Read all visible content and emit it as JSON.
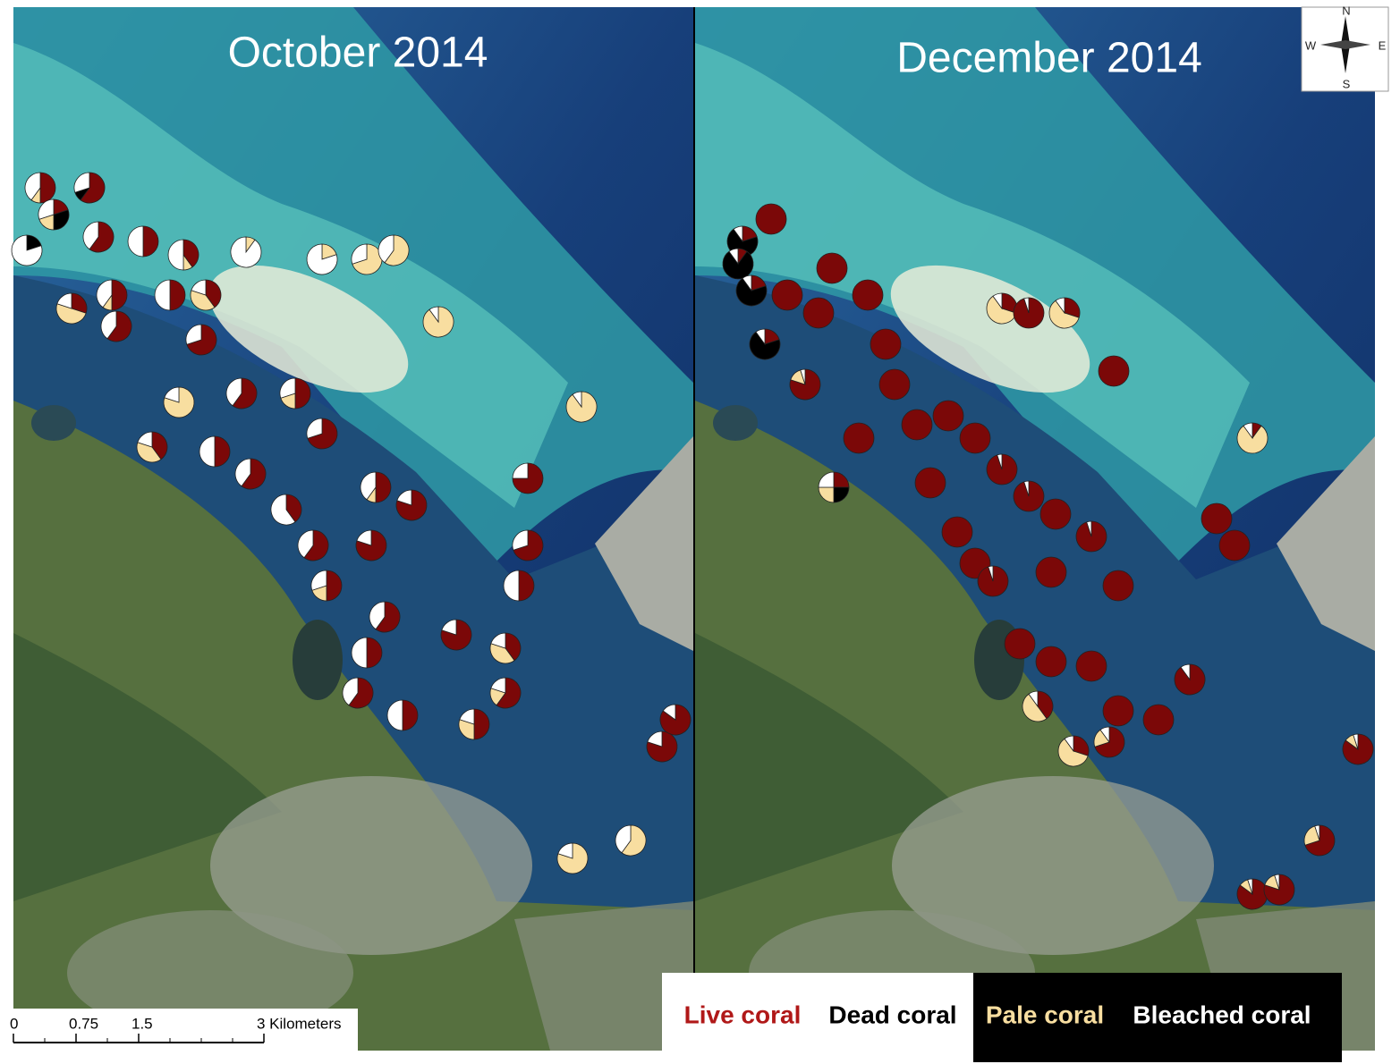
{
  "panels": [
    {
      "title": "October 2014",
      "sites": [
        [
          50,
          0,
          10,
          40
        ],
        [
          60,
          10,
          0,
          30
        ],
        [
          20,
          30,
          20,
          30
        ],
        [
          0,
          20,
          0,
          80
        ],
        [
          60,
          0,
          0,
          40
        ],
        [
          50,
          0,
          0,
          50
        ],
        [
          40,
          0,
          10,
          50
        ],
        [
          0,
          0,
          10,
          90
        ],
        [
          0,
          0,
          20,
          80
        ],
        [
          0,
          0,
          70,
          30
        ],
        [
          0,
          0,
          60,
          40
        ],
        [
          50,
          0,
          10,
          40
        ],
        [
          50,
          0,
          0,
          50
        ],
        [
          40,
          0,
          40,
          20
        ],
        [
          30,
          0,
          50,
          20
        ],
        [
          60,
          0,
          0,
          40
        ],
        [
          70,
          0,
          0,
          30
        ],
        [
          0,
          0,
          90,
          10
        ],
        [
          0,
          0,
          80,
          20
        ],
        [
          60,
          0,
          0,
          40
        ],
        [
          50,
          0,
          20,
          30
        ],
        [
          0,
          0,
          90,
          10
        ],
        [
          40,
          0,
          40,
          20
        ],
        [
          50,
          0,
          0,
          50
        ],
        [
          60,
          0,
          0,
          40
        ],
        [
          70,
          0,
          0,
          30
        ],
        [
          50,
          0,
          10,
          40
        ],
        [
          80,
          0,
          0,
          20
        ],
        [
          75,
          0,
          0,
          25
        ],
        [
          40,
          0,
          0,
          60
        ],
        [
          60,
          0,
          0,
          40
        ],
        [
          80,
          0,
          0,
          20
        ],
        [
          70,
          0,
          0,
          30
        ],
        [
          50,
          0,
          0,
          50
        ],
        [
          50,
          0,
          20,
          30
        ],
        [
          60,
          0,
          0,
          40
        ],
        [
          50,
          0,
          0,
          50
        ],
        [
          80,
          0,
          0,
          20
        ],
        [
          40,
          0,
          40,
          20
        ],
        [
          60,
          0,
          0,
          40
        ],
        [
          50,
          0,
          0,
          50
        ],
        [
          50,
          0,
          30,
          20
        ],
        [
          60,
          0,
          20,
          20
        ],
        [
          0,
          0,
          80,
          20
        ],
        [
          0,
          0,
          60,
          40
        ],
        [
          80,
          0,
          0,
          20
        ],
        [
          85,
          0,
          0,
          15
        ]
      ]
    },
    {
      "title": "December 2014",
      "sites": [
        [
          100,
          0,
          0,
          0
        ],
        [
          20,
          70,
          0,
          10
        ],
        [
          10,
          80,
          0,
          10
        ],
        [
          100,
          0,
          0,
          0
        ],
        [
          100,
          0,
          0,
          0
        ],
        [
          20,
          70,
          0,
          10
        ],
        [
          100,
          0,
          0,
          0
        ],
        [
          100,
          0,
          0,
          0
        ],
        [
          100,
          0,
          0,
          0
        ],
        [
          100,
          0,
          0,
          0
        ],
        [
          20,
          70,
          0,
          10
        ],
        [
          30,
          0,
          60,
          10
        ],
        [
          95,
          0,
          0,
          5
        ],
        [
          30,
          0,
          60,
          10
        ],
        [
          100,
          0,
          0,
          0
        ],
        [
          80,
          0,
          15,
          5
        ],
        [
          100,
          0,
          0,
          0
        ],
        [
          100,
          0,
          0,
          0
        ],
        [
          95,
          0,
          0,
          5
        ],
        [
          100,
          0,
          0,
          0
        ],
        [
          100,
          0,
          0,
          0
        ],
        [
          10,
          0,
          80,
          10
        ],
        [
          25,
          25,
          25,
          25
        ],
        [
          100,
          0,
          0,
          0
        ],
        [
          100,
          0,
          0,
          0
        ],
        [
          95,
          0,
          0,
          5
        ],
        [
          100,
          0,
          0,
          0
        ],
        [
          95,
          0,
          0,
          5
        ],
        [
          100,
          0,
          0,
          0
        ],
        [
          100,
          0,
          0,
          0
        ],
        [
          95,
          0,
          0,
          5
        ],
        [
          100,
          0,
          0,
          0
        ],
        [
          100,
          0,
          0,
          0
        ],
        [
          100,
          0,
          0,
          0
        ],
        [
          100,
          0,
          0,
          0
        ],
        [
          40,
          0,
          50,
          10
        ],
        [
          30,
          0,
          60,
          10
        ],
        [
          70,
          0,
          20,
          10
        ],
        [
          100,
          0,
          0,
          0
        ],
        [
          100,
          0,
          0,
          0
        ],
        [
          100,
          0,
          0,
          0
        ],
        [
          100,
          0,
          0,
          0
        ],
        [
          90,
          0,
          0,
          10
        ],
        [
          85,
          0,
          10,
          5
        ],
        [
          80,
          0,
          15,
          5
        ],
        [
          70,
          0,
          25,
          5
        ],
        [
          85,
          0,
          10,
          5
        ]
      ]
    }
  ],
  "legend": [
    {
      "label": "Live coral",
      "color": "#7b0808"
    },
    {
      "label": "Dead coral",
      "color": "#000000"
    },
    {
      "label": "Pale coral",
      "color": "#f8dea0"
    },
    {
      "label": "Bleached coral",
      "color": "#ffffff"
    }
  ],
  "compass": {
    "n": "N",
    "s": "S",
    "e": "E",
    "w": "W"
  },
  "scale_bar": {
    "ticks": [
      {
        "value": 0,
        "label": "0"
      },
      {
        "value": 0.75,
        "label": "0.75"
      },
      {
        "value": 1.5,
        "label": "1.5"
      },
      {
        "value": 3,
        "label": "3 Kilometers"
      }
    ]
  }
}
